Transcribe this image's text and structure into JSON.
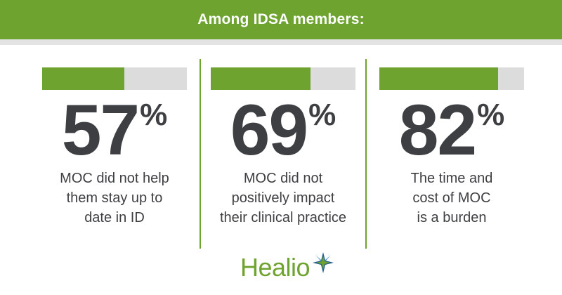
{
  "header": {
    "title": "Among IDSA members:"
  },
  "colors": {
    "accent": "#6ea32f",
    "track": "#dcdcdc",
    "text": "#3d3f42"
  },
  "chart_data": {
    "type": "bar",
    "orientation": "horizontal-progress",
    "categories": [
      "MOC did not help them stay up to date in ID",
      "MOC did not positively impact their clinical practice",
      "The time and cost of MOC is a burden"
    ],
    "values": [
      57,
      69,
      82
    ],
    "unit": "%",
    "ylim": [
      0,
      100
    ]
  },
  "stats": [
    {
      "value": "57",
      "suffix": "%",
      "fraction": 0.57,
      "caption_lines": [
        "MOC did not help",
        "them stay up to",
        "date in ID"
      ]
    },
    {
      "value": "69",
      "suffix": "%",
      "fraction": 0.69,
      "caption_lines": [
        "MOC did not",
        "positively impact",
        "their clinical practice"
      ]
    },
    {
      "value": "82",
      "suffix": "%",
      "fraction": 0.82,
      "caption_lines": [
        "The time and",
        "cost of MOC",
        "is a burden"
      ]
    }
  ],
  "logo": {
    "text": "Healio",
    "icon": "healio-star-icon"
  }
}
